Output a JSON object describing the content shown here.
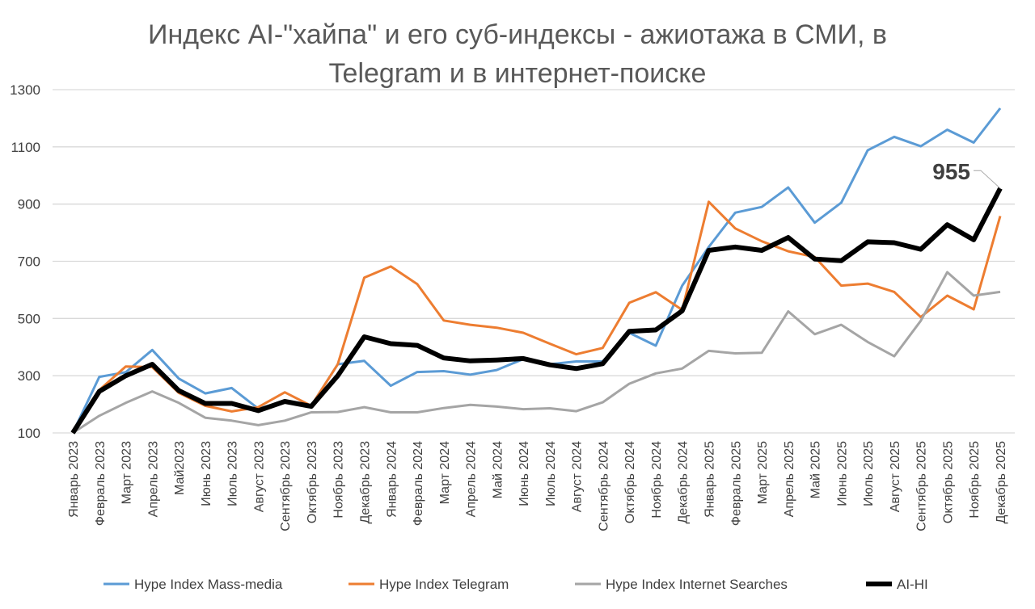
{
  "chart_data": {
    "type": "line",
    "title_lines": [
      "Индекс AI-\"хайпа\" и его суб-индексы - ажиотажа в СМИ, в",
      "Telegram и в интернет-поиске"
    ],
    "xlabel": "",
    "ylabel": "",
    "ylim": [
      100,
      1300
    ],
    "yticks": [
      100,
      300,
      500,
      700,
      900,
      1100,
      1300
    ],
    "grid": true,
    "legend_position": "bottom",
    "categories": [
      "Январь 2023",
      "Февраль 2023",
      "Март 2023",
      "Апрель 2023",
      "Май2023",
      "Июнь 2023",
      "Июль 2023",
      "Август 2023",
      "Сентябрь 2023",
      "Октябрь 2023",
      "Ноябрь 2023",
      "Декабрь 2023",
      "Январь 2024",
      "Февраль 2024",
      "Март 2024",
      "Апрель 2024",
      "Май 2024",
      "Июнь 2024",
      "Июль 2024",
      "Август 2024",
      "Сентябрь 2024",
      "Октябрь 2024",
      "Ноябрь 2024",
      "Декабрь 2024",
      "Январь 2025",
      "Февраль 2025",
      "Март 2025",
      "Апрель 2025",
      "Май 2025",
      "Июнь 2025",
      "Июль 2025",
      "Август 2025",
      "Сентябрь 2025",
      "Октябрь 2025",
      "Ноябрь 2025",
      "Декабрь 2025"
    ],
    "series": [
      {
        "name": "Hype Index Mass-media",
        "color": "#5B9BD5",
        "values": [
          100,
          296,
          312,
          390,
          290,
          238,
          257,
          185,
          210,
          195,
          340,
          352,
          265,
          313,
          316,
          304,
          320,
          358,
          340,
          350,
          350,
          450,
          405,
          615,
          750,
          870,
          890,
          958,
          835,
          905,
          1088,
          1135,
          1102,
          1160,
          1115,
          1235
        ]
      },
      {
        "name": "Hype Index Telegram",
        "color": "#ED7D31",
        "values": [
          100,
          250,
          332,
          330,
          240,
          195,
          175,
          190,
          242,
          195,
          340,
          643,
          682,
          620,
          493,
          478,
          468,
          450,
          412,
          375,
          397,
          555,
          592,
          530,
          908,
          815,
          770,
          735,
          715,
          615,
          622,
          593,
          505,
          580,
          532,
          858
        ]
      },
      {
        "name": "Hype Index Internet Searches",
        "color": "#A5A5A5",
        "values": [
          100,
          160,
          205,
          245,
          205,
          153,
          143,
          127,
          143,
          172,
          173,
          190,
          172,
          172,
          187,
          198,
          192,
          183,
          186,
          176,
          207,
          272,
          308,
          325,
          387,
          378,
          380,
          525,
          445,
          478,
          418,
          368,
          492,
          662,
          580,
          593
        ]
      },
      {
        "name": "AI-HI",
        "color": "#000000",
        "values": [
          100,
          245,
          300,
          340,
          248,
          203,
          203,
          178,
          210,
          193,
          300,
          436,
          412,
          406,
          362,
          352,
          355,
          360,
          338,
          325,
          342,
          455,
          460,
          527,
          738,
          750,
          738,
          783,
          708,
          702,
          768,
          765,
          742,
          828,
          775,
          955
        ]
      }
    ],
    "annotations": [
      {
        "series": "AI-HI",
        "category": "Декабрь 2025",
        "text": "955"
      }
    ]
  }
}
